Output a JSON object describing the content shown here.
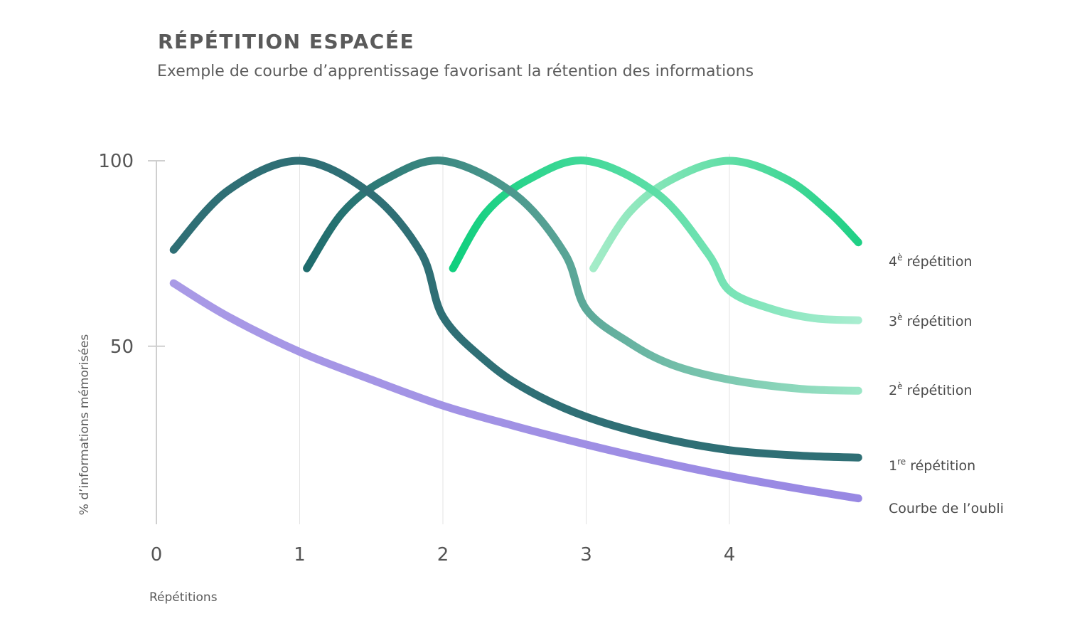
{
  "chart_data": {
    "type": "line",
    "title": "RÉPÉTITION ESPACÉE",
    "subtitle": "Exemple de courbe d’apprentissage favorisant la rétention des informations",
    "xlabel": "Répétitions",
    "ylabel": "% d’informations mémorisées",
    "xlim": [
      0,
      4.9
    ],
    "ylim": [
      0,
      100
    ],
    "x_ticks": [
      0,
      1,
      2,
      3,
      4
    ],
    "y_ticks": [
      50,
      100
    ],
    "grid": {
      "vertical": true,
      "horizontal": false
    },
    "series": [
      {
        "name": "Courbe de l’oubli",
        "color": "#a99ae6",
        "color_end": "#9888e3",
        "points": [
          [
            0.12,
            67
          ],
          [
            0.5,
            58
          ],
          [
            1,
            48.5
          ],
          [
            1.5,
            41
          ],
          [
            2,
            34
          ],
          [
            2.5,
            28.5
          ],
          [
            3,
            23.5
          ],
          [
            3.5,
            19
          ],
          [
            4,
            15
          ],
          [
            4.5,
            11.5
          ],
          [
            4.9,
            9
          ]
        ]
      },
      {
        "name": "1re répétition",
        "color": "#2f6f75",
        "points": [
          [
            0.12,
            76
          ],
          [
            0.5,
            92
          ],
          [
            1,
            100
          ],
          [
            1.5,
            91
          ],
          [
            1.85,
            75
          ],
          [
            2,
            58
          ],
          [
            2.3,
            46
          ],
          [
            2.6,
            38
          ],
          [
            3,
            31
          ],
          [
            3.5,
            25.5
          ],
          [
            4,
            22
          ],
          [
            4.5,
            20.5
          ],
          [
            4.9,
            20
          ]
        ]
      },
      {
        "name": "2e répétition",
        "color": "#1e6b6c",
        "color_end": "#9be6c6",
        "points": [
          [
            1.05,
            71
          ],
          [
            1.3,
            86
          ],
          [
            1.6,
            95
          ],
          [
            2,
            100
          ],
          [
            2.5,
            91
          ],
          [
            2.85,
            75
          ],
          [
            3,
            60
          ],
          [
            3.3,
            51
          ],
          [
            3.6,
            45
          ],
          [
            4,
            41
          ],
          [
            4.5,
            38.5
          ],
          [
            4.9,
            38
          ]
        ]
      },
      {
        "name": "3e répétition",
        "color": "#10cf7e",
        "color_end": "#a9edd0",
        "points": [
          [
            2.07,
            71
          ],
          [
            2.3,
            86
          ],
          [
            2.6,
            95
          ],
          [
            3,
            100
          ],
          [
            3.5,
            91
          ],
          [
            3.85,
            75
          ],
          [
            4,
            65
          ],
          [
            4.3,
            60
          ],
          [
            4.6,
            57.5
          ],
          [
            4.9,
            57
          ]
        ]
      },
      {
        "name": "4e répétition",
        "color": "#a4ecc8",
        "color_end": "#1fd085",
        "points": [
          [
            3.05,
            71
          ],
          [
            3.3,
            86
          ],
          [
            3.6,
            95
          ],
          [
            4,
            100
          ],
          [
            4.4,
            95
          ],
          [
            4.7,
            86
          ],
          [
            4.9,
            78
          ]
        ]
      }
    ],
    "labels": [
      {
        "base": "4",
        "sup": "è",
        "rest": " répétition"
      },
      {
        "base": "3",
        "sup": "è",
        "rest": " répétition"
      },
      {
        "base": "2",
        "sup": "è",
        "rest": " répétition"
      },
      {
        "base": "1",
        "sup": "re",
        "rest": " répétition"
      },
      {
        "base": "Courbe de l’oubli",
        "sup": "",
        "rest": ""
      }
    ]
  }
}
